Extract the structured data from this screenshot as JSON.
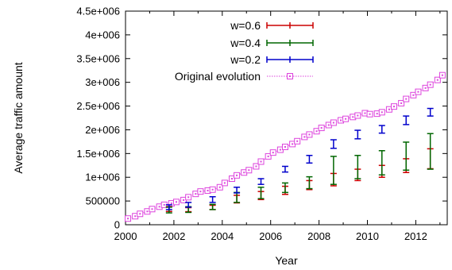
{
  "chart_data": {
    "type": "scatter",
    "title": "",
    "xlabel": "Year",
    "ylabel": "Average traffic amount",
    "xlim": [
      2000,
      2013.3
    ],
    "ylim": [
      0,
      4500000
    ],
    "grid": false,
    "legend_position": "top-center",
    "x_ticks": [
      2000,
      2002,
      2004,
      2006,
      2008,
      2010,
      2012
    ],
    "x_tick_labels": [
      "2000",
      "2002",
      "2004",
      "2006",
      "2008",
      "2010",
      "2012"
    ],
    "y_ticks": [
      0,
      500000,
      1000000,
      1500000,
      2000000,
      2500000,
      3000000,
      3500000,
      4000000,
      4500000
    ],
    "y_tick_labels": [
      "0",
      "500000",
      "1e+006",
      "1.5e+006",
      "2e+006",
      "2.5e+006",
      "3e+006",
      "3.5e+006",
      "4e+006",
      "4.5e+006"
    ],
    "series": [
      {
        "name": "w=0.6",
        "style": "errorbars",
        "color": "#cc0000",
        "points": [
          {
            "x": 2001.8,
            "y": 330000,
            "low": 280000,
            "high": 380000
          },
          {
            "x": 2002.6,
            "y": 320000,
            "low": 275000,
            "high": 360000
          },
          {
            "x": 2003.6,
            "y": 370000,
            "low": 320000,
            "high": 410000
          },
          {
            "x": 2004.6,
            "y": 530000,
            "low": 460000,
            "high": 620000
          },
          {
            "x": 2005.6,
            "y": 610000,
            "low": 530000,
            "high": 700000
          },
          {
            "x": 2006.6,
            "y": 720000,
            "low": 640000,
            "high": 810000
          },
          {
            "x": 2007.6,
            "y": 830000,
            "low": 740000,
            "high": 930000
          },
          {
            "x": 2008.6,
            "y": 940000,
            "low": 820000,
            "high": 1080000
          },
          {
            "x": 2009.6,
            "y": 1050000,
            "low": 930000,
            "high": 1170000
          },
          {
            "x": 2010.6,
            "y": 1120000,
            "low": 1000000,
            "high": 1250000
          },
          {
            "x": 2011.6,
            "y": 1240000,
            "low": 1100000,
            "high": 1390000
          },
          {
            "x": 2012.6,
            "y": 1320000,
            "low": 1180000,
            "high": 1600000
          }
        ]
      },
      {
        "name": "w=0.4",
        "style": "errorbars",
        "color": "#006600",
        "points": [
          {
            "x": 2001.8,
            "y": 310000,
            "low": 250000,
            "high": 370000
          },
          {
            "x": 2002.6,
            "y": 320000,
            "low": 260000,
            "high": 380000
          },
          {
            "x": 2003.6,
            "y": 370000,
            "low": 320000,
            "high": 430000
          },
          {
            "x": 2004.6,
            "y": 570000,
            "low": 470000,
            "high": 680000
          },
          {
            "x": 2005.6,
            "y": 670000,
            "low": 550000,
            "high": 790000
          },
          {
            "x": 2006.6,
            "y": 800000,
            "low": 680000,
            "high": 880000
          },
          {
            "x": 2007.6,
            "y": 880000,
            "low": 760000,
            "high": 1010000
          },
          {
            "x": 2008.6,
            "y": 1170000,
            "low": 850000,
            "high": 1440000
          },
          {
            "x": 2009.6,
            "y": 1200000,
            "low": 970000,
            "high": 1460000
          },
          {
            "x": 2010.6,
            "y": 1360000,
            "low": 1050000,
            "high": 1560000
          },
          {
            "x": 2011.6,
            "y": 1500000,
            "low": 1150000,
            "high": 1740000
          },
          {
            "x": 2012.6,
            "y": 1580000,
            "low": 1170000,
            "high": 1920000
          }
        ]
      },
      {
        "name": "w=0.2",
        "style": "errorbars",
        "color": "#0000cc",
        "points": [
          {
            "x": 2001.8,
            "y": 370000,
            "low": 320000,
            "high": 420000
          },
          {
            "x": 2002.6,
            "y": 420000,
            "low": 370000,
            "high": 470000
          },
          {
            "x": 2003.6,
            "y": 530000,
            "low": 470000,
            "high": 590000
          },
          {
            "x": 2004.6,
            "y": 730000,
            "low": 670000,
            "high": 790000
          },
          {
            "x": 2005.6,
            "y": 910000,
            "low": 850000,
            "high": 970000
          },
          {
            "x": 2006.6,
            "y": 1170000,
            "low": 1110000,
            "high": 1230000
          },
          {
            "x": 2007.6,
            "y": 1380000,
            "low": 1300000,
            "high": 1460000
          },
          {
            "x": 2008.6,
            "y": 1700000,
            "low": 1610000,
            "high": 1790000
          },
          {
            "x": 2009.6,
            "y": 1900000,
            "low": 1810000,
            "high": 1990000
          },
          {
            "x": 2010.6,
            "y": 2010000,
            "low": 1930000,
            "high": 2090000
          },
          {
            "x": 2011.6,
            "y": 2200000,
            "low": 2110000,
            "high": 2290000
          },
          {
            "x": 2012.6,
            "y": 2370000,
            "low": 2290000,
            "high": 2450000
          }
        ]
      },
      {
        "name": "Original evolution",
        "style": "line-squares",
        "color": "#dd44dd",
        "x": [
          2000.1,
          2000.4,
          2000.6,
          2000.9,
          2001.1,
          2001.4,
          2001.6,
          2001.9,
          2002.1,
          2002.4,
          2002.6,
          2002.9,
          2003.1,
          2003.4,
          2003.6,
          2003.9,
          2004.1,
          2004.4,
          2004.6,
          2004.9,
          2005.1,
          2005.4,
          2005.6,
          2005.9,
          2006.1,
          2006.4,
          2006.6,
          2006.9,
          2007.1,
          2007.4,
          2007.6,
          2007.9,
          2008.1,
          2008.4,
          2008.6,
          2008.9,
          2009.1,
          2009.4,
          2009.6,
          2009.9,
          2010.1,
          2010.4,
          2010.6,
          2010.9,
          2011.1,
          2011.4,
          2011.6,
          2011.9,
          2012.1,
          2012.4,
          2012.6,
          2012.9,
          2013.1
        ],
        "y": [
          130000,
          180000,
          230000,
          280000,
          330000,
          380000,
          420000,
          450000,
          480000,
          520000,
          580000,
          650000,
          700000,
          720000,
          740000,
          790000,
          880000,
          970000,
          1040000,
          1100000,
          1150000,
          1230000,
          1330000,
          1440000,
          1520000,
          1580000,
          1640000,
          1700000,
          1760000,
          1850000,
          1900000,
          1970000,
          2040000,
          2100000,
          2150000,
          2200000,
          2230000,
          2270000,
          2300000,
          2350000,
          2330000,
          2340000,
          2370000,
          2430000,
          2490000,
          2560000,
          2650000,
          2730000,
          2800000,
          2880000,
          2950000,
          3050000,
          3150000
        ]
      }
    ]
  }
}
